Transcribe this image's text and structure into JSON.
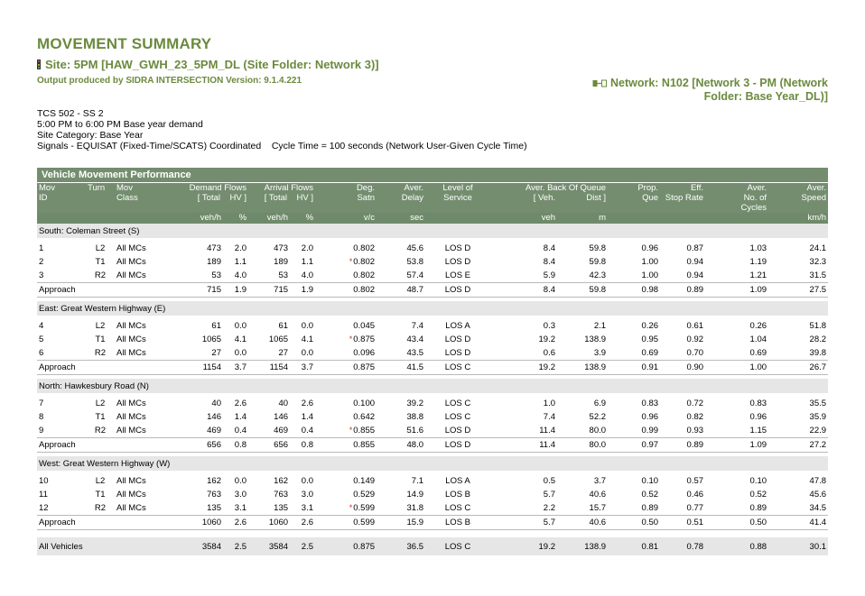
{
  "header": {
    "title": "MOVEMENT SUMMARY",
    "site": "Site: 5PM [HAW_GWH_23_5PM_DL (Site Folder: Network 3)]",
    "output": "Output produced by SIDRA INTERSECTION Version: 9.1.4.221",
    "network_line1": "Network: N102 [Network 3 - PM (Network",
    "network_line2": "Folder: Base Year_DL)]"
  },
  "info": {
    "line1": "TCS 502 - SS 2",
    "line2": "5:00 PM to 6:00 PM Base year demand",
    "line3": "Site Category: Base Year",
    "line4": "Signals - EQUISAT (Fixed-Time/SCATS) Coordinated    Cycle Time = 100 seconds (Network User-Given Cycle Time)"
  },
  "table": {
    "title": "Vehicle Movement Performance",
    "headers": {
      "mov": "Mov",
      "id": "ID",
      "turn": "Turn",
      "movclass1": "Mov",
      "movclass2": "Class",
      "demand": "Demand Flows",
      "demand_sub": "[ Total    HV ]",
      "arrival": "Arrival Flows",
      "arrival_sub": "[ Total    HV ]",
      "deg1": "Deg.",
      "deg2": "Satn",
      "delay1": "Aver.",
      "delay2": "Delay",
      "los1": "Level of",
      "los2": "Service",
      "queue": "Aver. Back Of Queue",
      "queue_veh": "[ Veh.",
      "queue_dist": "Dist ]",
      "prop1": "Prop.",
      "prop2": "Que",
      "eff1": "Eff.",
      "eff2": "Stop Rate",
      "cyc1": "Aver.",
      "cyc2": "No. of",
      "cyc3": "Cycles",
      "spd1": "Aver.",
      "spd2": "Speed"
    },
    "units": {
      "d_total": "veh/h",
      "d_hv": "%",
      "a_total": "veh/h",
      "a_hv": "%",
      "deg": "v/c",
      "delay": "sec",
      "veh": "veh",
      "dist": "m",
      "speed": "km/h"
    },
    "sections": [
      {
        "name": "South: Coleman Street (S)",
        "rows": [
          {
            "id": "1",
            "turn": "L2",
            "cls": "All MCs",
            "dt": "473",
            "dhv": "2.0",
            "at": "473",
            "ahv": "2.0",
            "deg": "0.802",
            "star": "",
            "delay": "45.6",
            "los": "LOS D",
            "veh": "8.4",
            "dist": "59.8",
            "prop": "0.96",
            "eff": "0.87",
            "cyc": "1.03",
            "spd": "24.1"
          },
          {
            "id": "2",
            "turn": "T1",
            "cls": "All MCs",
            "dt": "189",
            "dhv": "1.1",
            "at": "189",
            "ahv": "1.1",
            "deg": "0.802",
            "star": "*",
            "delay": "53.8",
            "los": "LOS D",
            "veh": "8.4",
            "dist": "59.8",
            "prop": "1.00",
            "eff": "0.94",
            "cyc": "1.19",
            "spd": "32.3"
          },
          {
            "id": "3",
            "turn": "R2",
            "cls": "All MCs",
            "dt": "53",
            "dhv": "4.0",
            "at": "53",
            "ahv": "4.0",
            "deg": "0.802",
            "star": "",
            "delay": "57.4",
            "los": "LOS E",
            "veh": "5.9",
            "dist": "42.3",
            "prop": "1.00",
            "eff": "0.94",
            "cyc": "1.21",
            "spd": "31.5"
          }
        ],
        "approach": {
          "label": "Approach",
          "dt": "715",
          "dhv": "1.9",
          "at": "715",
          "ahv": "1.9",
          "deg": "0.802",
          "delay": "48.7",
          "los": "LOS D",
          "veh": "8.4",
          "dist": "59.8",
          "prop": "0.98",
          "eff": "0.89",
          "cyc": "1.09",
          "spd": "27.5"
        }
      },
      {
        "name": "East: Great Western Highway (E)",
        "rows": [
          {
            "id": "4",
            "turn": "L2",
            "cls": "All MCs",
            "dt": "61",
            "dhv": "0.0",
            "at": "61",
            "ahv": "0.0",
            "deg": "0.045",
            "star": "",
            "delay": "7.4",
            "los": "LOS A",
            "veh": "0.3",
            "dist": "2.1",
            "prop": "0.26",
            "eff": "0.61",
            "cyc": "0.26",
            "spd": "51.8"
          },
          {
            "id": "5",
            "turn": "T1",
            "cls": "All MCs",
            "dt": "1065",
            "dhv": "4.1",
            "at": "1065",
            "ahv": "4.1",
            "deg": "0.875",
            "star": "*",
            "delay": "43.4",
            "los": "LOS D",
            "veh": "19.2",
            "dist": "138.9",
            "prop": "0.95",
            "eff": "0.92",
            "cyc": "1.04",
            "spd": "28.2"
          },
          {
            "id": "6",
            "turn": "R2",
            "cls": "All MCs",
            "dt": "27",
            "dhv": "0.0",
            "at": "27",
            "ahv": "0.0",
            "deg": "0.096",
            "star": "",
            "delay": "43.5",
            "los": "LOS D",
            "veh": "0.6",
            "dist": "3.9",
            "prop": "0.69",
            "eff": "0.70",
            "cyc": "0.69",
            "spd": "39.8"
          }
        ],
        "approach": {
          "label": "Approach",
          "dt": "1154",
          "dhv": "3.7",
          "at": "1154",
          "ahv": "3.7",
          "deg": "0.875",
          "delay": "41.5",
          "los": "LOS C",
          "veh": "19.2",
          "dist": "138.9",
          "prop": "0.91",
          "eff": "0.90",
          "cyc": "1.00",
          "spd": "26.7"
        }
      },
      {
        "name": "North: Hawkesbury Road (N)",
        "rows": [
          {
            "id": "7",
            "turn": "L2",
            "cls": "All MCs",
            "dt": "40",
            "dhv": "2.6",
            "at": "40",
            "ahv": "2.6",
            "deg": "0.100",
            "star": "",
            "delay": "39.2",
            "los": "LOS C",
            "veh": "1.0",
            "dist": "6.9",
            "prop": "0.83",
            "eff": "0.72",
            "cyc": "0.83",
            "spd": "35.5"
          },
          {
            "id": "8",
            "turn": "T1",
            "cls": "All MCs",
            "dt": "146",
            "dhv": "1.4",
            "at": "146",
            "ahv": "1.4",
            "deg": "0.642",
            "star": "",
            "delay": "38.8",
            "los": "LOS C",
            "veh": "7.4",
            "dist": "52.2",
            "prop": "0.96",
            "eff": "0.82",
            "cyc": "0.96",
            "spd": "35.9"
          },
          {
            "id": "9",
            "turn": "R2",
            "cls": "All MCs",
            "dt": "469",
            "dhv": "0.4",
            "at": "469",
            "ahv": "0.4",
            "deg": "0.855",
            "star": "*",
            "delay": "51.6",
            "los": "LOS D",
            "veh": "11.4",
            "dist": "80.0",
            "prop": "0.99",
            "eff": "0.93",
            "cyc": "1.15",
            "spd": "22.9"
          }
        ],
        "approach": {
          "label": "Approach",
          "dt": "656",
          "dhv": "0.8",
          "at": "656",
          "ahv": "0.8",
          "deg": "0.855",
          "delay": "48.0",
          "los": "LOS D",
          "veh": "11.4",
          "dist": "80.0",
          "prop": "0.97",
          "eff": "0.89",
          "cyc": "1.09",
          "spd": "27.2"
        }
      },
      {
        "name": "West: Great Western Highway (W)",
        "rows": [
          {
            "id": "10",
            "turn": "L2",
            "cls": "All MCs",
            "dt": "162",
            "dhv": "0.0",
            "at": "162",
            "ahv": "0.0",
            "deg": "0.149",
            "star": "",
            "delay": "7.1",
            "los": "LOS A",
            "veh": "0.5",
            "dist": "3.7",
            "prop": "0.10",
            "eff": "0.57",
            "cyc": "0.10",
            "spd": "47.8"
          },
          {
            "id": "11",
            "turn": "T1",
            "cls": "All MCs",
            "dt": "763",
            "dhv": "3.0",
            "at": "763",
            "ahv": "3.0",
            "deg": "0.529",
            "star": "",
            "delay": "14.9",
            "los": "LOS B",
            "veh": "5.7",
            "dist": "40.6",
            "prop": "0.52",
            "eff": "0.46",
            "cyc": "0.52",
            "spd": "45.6"
          },
          {
            "id": "12",
            "turn": "R2",
            "cls": "All MCs",
            "dt": "135",
            "dhv": "3.1",
            "at": "135",
            "ahv": "3.1",
            "deg": "0.599",
            "star": "*",
            "delay": "31.8",
            "los": "LOS C",
            "veh": "2.2",
            "dist": "15.7",
            "prop": "0.89",
            "eff": "0.77",
            "cyc": "0.89",
            "spd": "34.5"
          }
        ],
        "approach": {
          "label": "Approach",
          "dt": "1060",
          "dhv": "2.6",
          "at": "1060",
          "ahv": "2.6",
          "deg": "0.599",
          "delay": "15.9",
          "los": "LOS B",
          "veh": "5.7",
          "dist": "40.6",
          "prop": "0.50",
          "eff": "0.51",
          "cyc": "0.50",
          "spd": "41.4"
        }
      }
    ],
    "all_vehicles": {
      "label": "All Vehicles",
      "dt": "3584",
      "dhv": "2.5",
      "at": "3584",
      "ahv": "2.5",
      "deg": "0.875",
      "delay": "36.5",
      "los": "LOS C",
      "veh": "19.2",
      "dist": "138.9",
      "prop": "0.81",
      "eff": "0.78",
      "cyc": "0.88",
      "spd": "30.1"
    }
  }
}
